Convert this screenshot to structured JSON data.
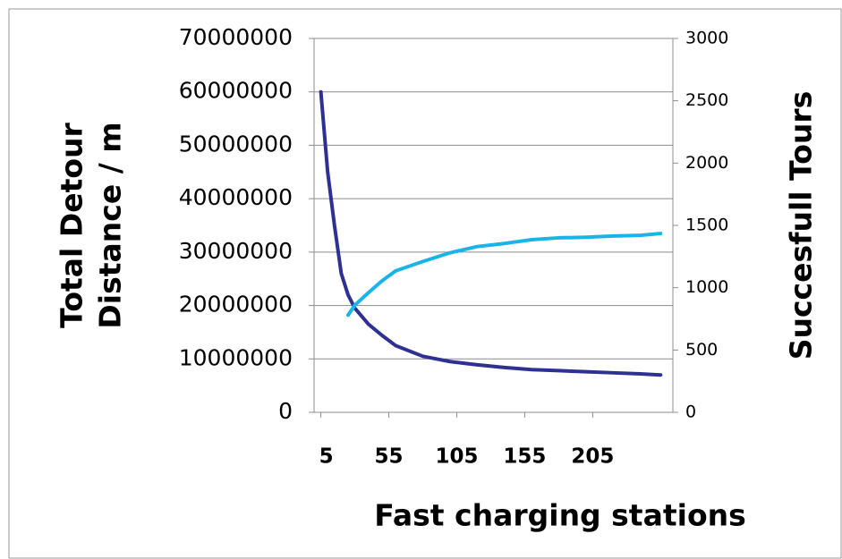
{
  "chart_data": {
    "type": "line",
    "y_label": [
      "Total Detour",
      "Distance / m"
    ],
    "y2_label": "Succesfull Tours",
    "x_label": "Fast charging stations",
    "xlim": [
      0,
      264
    ],
    "xticks": [
      5,
      55,
      105,
      155,
      205
    ],
    "ylim": [
      0,
      70000000
    ],
    "yticks": [
      0,
      10000000,
      20000000,
      30000000,
      40000000,
      50000000,
      60000000,
      70000000
    ],
    "y2lim": [
      0,
      3000
    ],
    "y2ticks": [
      0,
      500,
      1000,
      1500,
      2000,
      2500,
      3000
    ],
    "grid": true,
    "series": [
      {
        "color": "#2e3192",
        "x": [
          5,
          10,
          15,
          20,
          25,
          30,
          40,
          50,
          60,
          70,
          80,
          90,
          100,
          120,
          140,
          160,
          180,
          200,
          220,
          240,
          255
        ],
        "values": [
          60000000,
          45000000,
          35000000,
          26000000,
          22000000,
          19500000,
          16500000,
          14400000,
          12500000,
          11500000,
          10500000,
          10000000,
          9500000,
          8900000,
          8400000,
          8000000,
          7800000,
          7600000,
          7400000,
          7200000,
          7000000
        ]
      },
      {
        "color": "#1ab4e8",
        "axis": "y2",
        "x": [
          25,
          30,
          40,
          50,
          60,
          80,
          100,
          120,
          140,
          160,
          180,
          200,
          220,
          240,
          255
        ],
        "values": [
          780,
          860,
          960,
          1055,
          1135,
          1210,
          1280,
          1330,
          1355,
          1385,
          1400,
          1405,
          1415,
          1420,
          1435
        ]
      }
    ]
  }
}
